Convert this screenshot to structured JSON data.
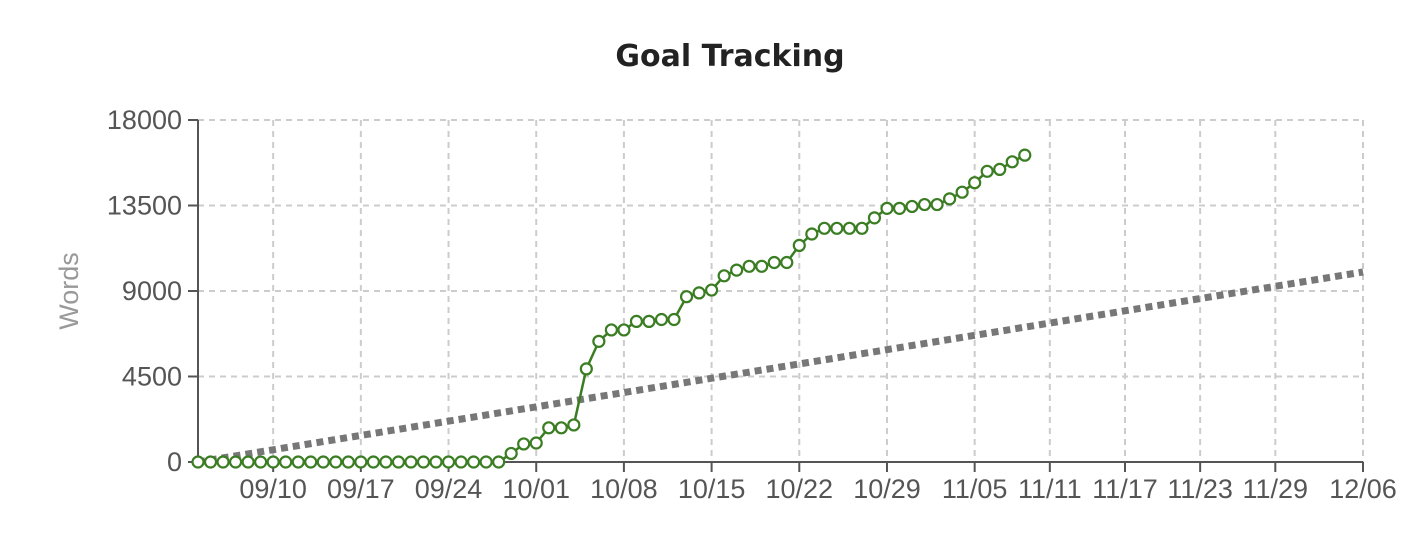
{
  "chart_data": {
    "type": "line",
    "title": "Goal Tracking",
    "xlabel": "",
    "ylabel": "Words",
    "ylim": [
      0,
      18000
    ],
    "xlim": [
      "2024-09-04",
      "2024-12-06"
    ],
    "y_ticks": [
      0,
      4500,
      9000,
      13500,
      18000
    ],
    "x_ticks": [
      "09/10",
      "09/17",
      "09/24",
      "10/01",
      "10/08",
      "10/15",
      "10/22",
      "10/29",
      "11/05",
      "11/11",
      "11/17",
      "11/23",
      "11/29",
      "12/06"
    ],
    "x_tick_dates": [
      "2024-09-10",
      "2024-09-17",
      "2024-09-24",
      "2024-10-01",
      "2024-10-08",
      "2024-10-15",
      "2024-10-22",
      "2024-10-29",
      "2024-11-05",
      "2024-11-11",
      "2024-11-17",
      "2024-11-23",
      "2024-11-29",
      "2024-12-06"
    ],
    "grid": true,
    "series": [
      {
        "name": "",
        "color": "#3a7d22",
        "style": "solid-with-circle-markers",
        "x": [
          "2024-09-04",
          "2024-09-05",
          "2024-09-06",
          "2024-09-07",
          "2024-09-08",
          "2024-09-09",
          "2024-09-10",
          "2024-09-11",
          "2024-09-12",
          "2024-09-13",
          "2024-09-14",
          "2024-09-15",
          "2024-09-16",
          "2024-09-17",
          "2024-09-18",
          "2024-09-19",
          "2024-09-20",
          "2024-09-21",
          "2024-09-22",
          "2024-09-23",
          "2024-09-24",
          "2024-09-25",
          "2024-09-26",
          "2024-09-27",
          "2024-09-28",
          "2024-09-29",
          "2024-09-30",
          "2024-10-01",
          "2024-10-02",
          "2024-10-03",
          "2024-10-04",
          "2024-10-05",
          "2024-10-06",
          "2024-10-07",
          "2024-10-08",
          "2024-10-09",
          "2024-10-10",
          "2024-10-11",
          "2024-10-12",
          "2024-10-13",
          "2024-10-14",
          "2024-10-15",
          "2024-10-16",
          "2024-10-17",
          "2024-10-18",
          "2024-10-19",
          "2024-10-20",
          "2024-10-21",
          "2024-10-22",
          "2024-10-23",
          "2024-10-24",
          "2024-10-25",
          "2024-10-26",
          "2024-10-27",
          "2024-10-28",
          "2024-10-29",
          "2024-10-30",
          "2024-10-31",
          "2024-11-01",
          "2024-11-02",
          "2024-11-03",
          "2024-11-04",
          "2024-11-05",
          "2024-11-06",
          "2024-11-07",
          "2024-11-08",
          "2024-11-09"
        ],
        "y": [
          0,
          0,
          0,
          0,
          0,
          0,
          0,
          0,
          0,
          0,
          0,
          0,
          0,
          0,
          0,
          0,
          0,
          0,
          0,
          0,
          0,
          0,
          0,
          0,
          0,
          450,
          950,
          1000,
          1800,
          1800,
          1950,
          4900,
          6350,
          6950,
          6950,
          7400,
          7400,
          7500,
          7500,
          8700,
          8900,
          9050,
          9800,
          10100,
          10300,
          10300,
          10500,
          10500,
          11400,
          12000,
          12300,
          12300,
          12300,
          12300,
          12850,
          13350,
          13350,
          13450,
          13550,
          13550,
          13850,
          14200,
          14700,
          15300,
          15400,
          15800,
          16150
        ]
      },
      {
        "name": "",
        "color": "#777777",
        "style": "dotted",
        "x": [
          "2024-09-04",
          "2024-12-06"
        ],
        "y": [
          0,
          10000
        ]
      }
    ]
  }
}
